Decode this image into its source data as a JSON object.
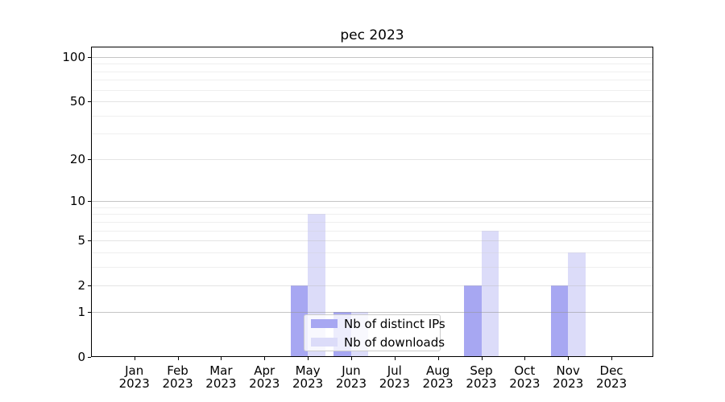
{
  "title": "pec 2023",
  "chart_data": {
    "type": "bar",
    "title": "pec 2023",
    "year_label": "2023",
    "categories": [
      "Jan",
      "Feb",
      "Mar",
      "Apr",
      "May",
      "Jun",
      "Jul",
      "Aug",
      "Sep",
      "Oct",
      "Nov",
      "Dec"
    ],
    "series": [
      {
        "name": "Nb of distinct IPs",
        "color": "#a7a7f2",
        "values": [
          0,
          0,
          0,
          0,
          2,
          1,
          0,
          0,
          2,
          0,
          2,
          0
        ]
      },
      {
        "name": "Nb of downloads",
        "color": "#dcdcf9",
        "values": [
          0,
          0,
          0,
          0,
          8,
          1,
          0,
          0,
          6,
          0,
          4,
          0
        ]
      }
    ],
    "scale": "log1p",
    "ylim": [
      0,
      100
    ],
    "yticks": [
      0,
      1,
      2,
      5,
      10,
      20,
      50,
      100
    ],
    "major_gridlines": [
      1,
      10,
      100
    ],
    "mid_gridlines": [
      2,
      5,
      20,
      50
    ],
    "minor_gridlines": [
      3,
      4,
      6,
      7,
      8,
      9,
      30,
      40,
      60,
      70,
      80,
      90
    ],
    "grid": "horizontal major+minor, drawn over bars",
    "legend_position": "inside, lower center"
  },
  "colors": {
    "background": "#ffffff",
    "bar_distinct_ips": "#a7a7f2",
    "bar_downloads": "#dcdcf9",
    "axis": "#000000",
    "legend_border": "#cccccc"
  }
}
